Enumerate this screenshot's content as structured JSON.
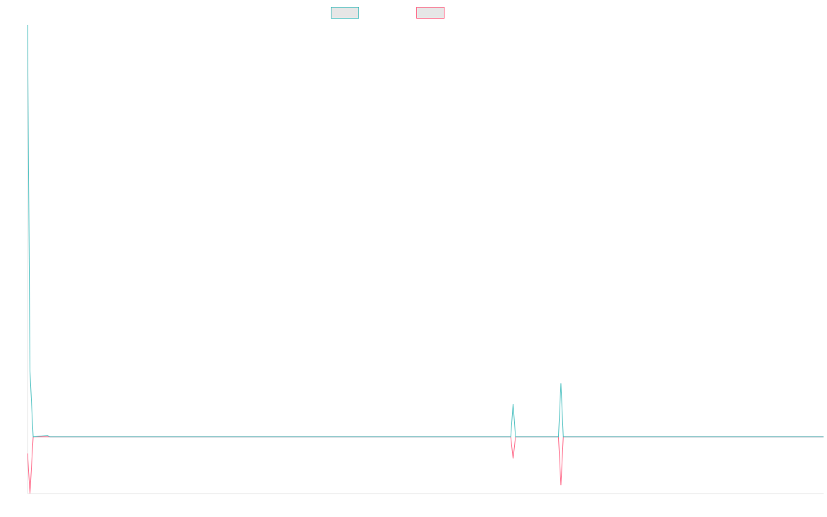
{
  "chart_data": {
    "type": "line",
    "title": "",
    "xlabel": "",
    "ylabel": "",
    "grid": false,
    "legend": "top-center",
    "xlim": [
      0,
      1000
    ],
    "ylim": [
      -27.5,
      200
    ],
    "series": [
      {
        "color": "#4bc0c0",
        "points": [
          [
            0,
            200
          ],
          [
            3,
            32
          ],
          [
            7,
            0
          ],
          [
            25,
            0.7
          ],
          [
            28,
            0
          ],
          [
            607,
            0
          ],
          [
            610,
            16
          ],
          [
            613,
            0
          ],
          [
            667,
            0
          ],
          [
            670,
            26
          ],
          [
            673,
            0
          ],
          [
            1000,
            0
          ]
        ]
      },
      {
        "color": "#ff6384",
        "points": [
          [
            0,
            -8
          ],
          [
            3,
            -27.5
          ],
          [
            7,
            0
          ],
          [
            607,
            0
          ],
          [
            610,
            -10.5
          ],
          [
            613,
            0
          ],
          [
            667,
            0
          ],
          [
            670,
            -23.5
          ],
          [
            673,
            0
          ],
          [
            1000,
            0
          ]
        ]
      }
    ]
  }
}
